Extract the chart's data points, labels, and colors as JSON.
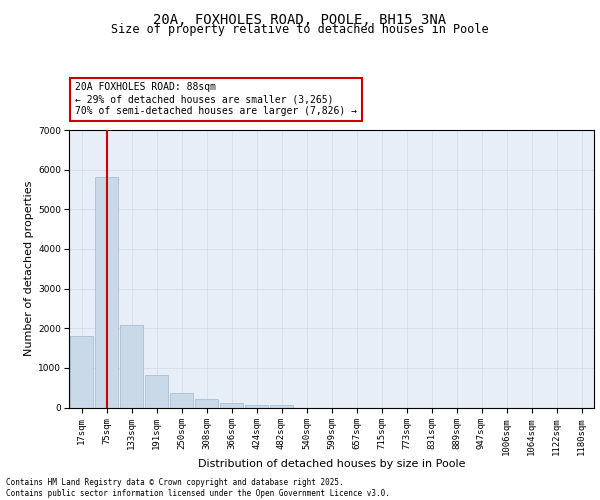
{
  "title_line1": "20A, FOXHOLES ROAD, POOLE, BH15 3NA",
  "title_line2": "Size of property relative to detached houses in Poole",
  "xlabel": "Distribution of detached houses by size in Poole",
  "ylabel": "Number of detached properties",
  "categories": [
    "17sqm",
    "75sqm",
    "133sqm",
    "191sqm",
    "250sqm",
    "308sqm",
    "366sqm",
    "424sqm",
    "482sqm",
    "540sqm",
    "599sqm",
    "657sqm",
    "715sqm",
    "773sqm",
    "831sqm",
    "889sqm",
    "947sqm",
    "1006sqm",
    "1064sqm",
    "1122sqm",
    "1180sqm"
  ],
  "values": [
    1800,
    5820,
    2080,
    820,
    360,
    215,
    110,
    75,
    55,
    0,
    0,
    0,
    0,
    0,
    0,
    0,
    0,
    0,
    0,
    0,
    0
  ],
  "bar_color": "#c9d9e8",
  "bar_edge_color": "#a0b8d0",
  "annotation_box_text": "20A FOXHOLES ROAD: 88sqm\n← 29% of detached houses are smaller (3,265)\n70% of semi-detached houses are larger (7,826) →",
  "ylim": [
    0,
    7000
  ],
  "yticks": [
    0,
    1000,
    2000,
    3000,
    4000,
    5000,
    6000,
    7000
  ],
  "grid_color": "#d0d8e8",
  "bg_color": "#e8eef8",
  "footer_line1": "Contains HM Land Registry data © Crown copyright and database right 2025.",
  "footer_line2": "Contains public sector information licensed under the Open Government Licence v3.0.",
  "red_line_color": "#cc0000",
  "red_line_x": 1.0,
  "title_fontsize": 10,
  "subtitle_fontsize": 8.5,
  "tick_fontsize": 6.5,
  "label_fontsize": 8,
  "annotation_fontsize": 7
}
